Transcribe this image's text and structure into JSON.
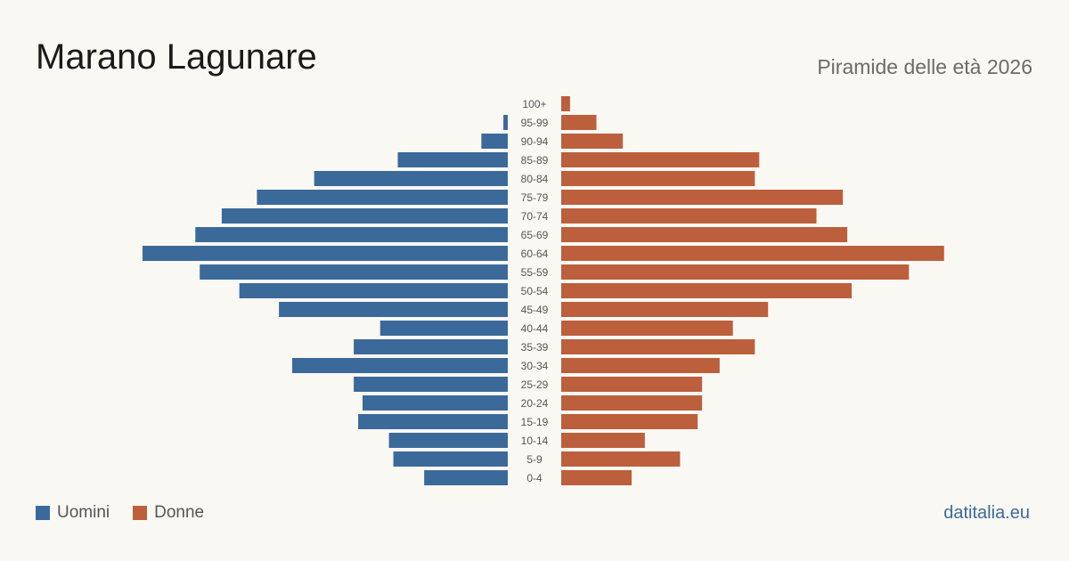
{
  "header": {
    "title": "Marano Lagunare",
    "subtitle": "Piramide delle età 2026"
  },
  "legend": {
    "men_label": "Uomini",
    "women_label": "Donne"
  },
  "brand": "datitalia.eu",
  "colors": {
    "men": "#3b6a9a",
    "women": "#bc5f3c"
  },
  "chart_data": {
    "type": "bar",
    "orientation": "horizontal-pyramid",
    "categories": [
      "100+",
      "95-99",
      "90-94",
      "85-89",
      "80-84",
      "75-79",
      "70-74",
      "65-69",
      "60-64",
      "55-59",
      "50-54",
      "45-49",
      "40-44",
      "35-39",
      "30-34",
      "25-29",
      "20-24",
      "15-19",
      "10-14",
      "5-9",
      "0-4"
    ],
    "series": [
      {
        "name": "Uomini",
        "values": [
          0,
          1,
          6,
          25,
          44,
          57,
          65,
          71,
          83,
          70,
          61,
          52,
          29,
          35,
          49,
          35,
          33,
          34,
          27,
          26,
          19
        ]
      },
      {
        "name": "Donne",
        "values": [
          2,
          8,
          14,
          45,
          44,
          64,
          58,
          65,
          87,
          79,
          66,
          47,
          39,
          44,
          36,
          32,
          32,
          31,
          19,
          27,
          16
        ]
      }
    ],
    "legend_position": "bottom-left",
    "grid": false
  }
}
